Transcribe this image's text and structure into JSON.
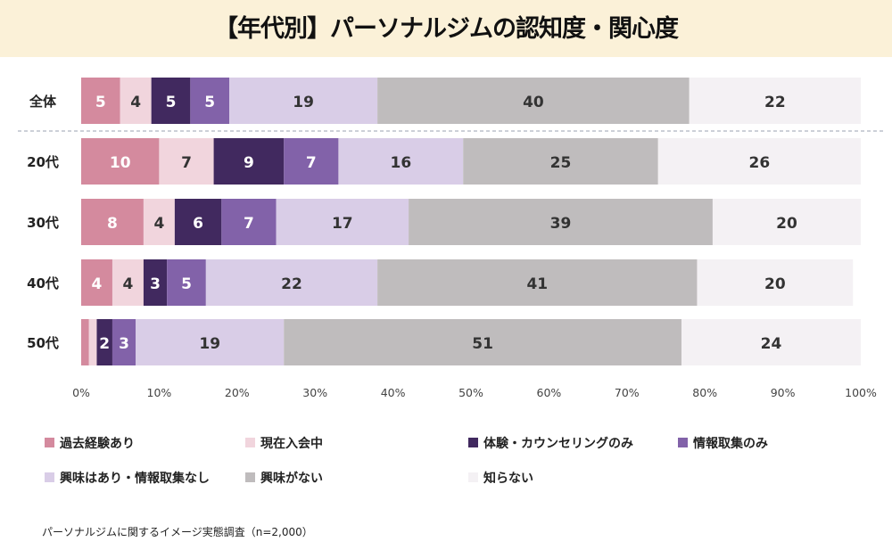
{
  "title": "【年代別】パーソナルジムの認知度・関心度",
  "footnote": "パーソナルジムに関するイメージ実態調査（n=2,000）",
  "chart_data": {
    "type": "bar",
    "orientation": "horizontal-stacked",
    "title": "【年代別】パーソナルジムの認知度・関心度",
    "categories": [
      "全体",
      "20代",
      "30代",
      "40代",
      "50代"
    ],
    "xlim": [
      0,
      100
    ],
    "xticks": [
      "0%",
      "10%",
      "20%",
      "30%",
      "40%",
      "50%",
      "60%",
      "70%",
      "80%",
      "90%",
      "100%"
    ],
    "legend_position": "bottom",
    "series": [
      {
        "name": "過去経験あり",
        "color": "#d48a9e",
        "label_color": "#ffffff",
        "values": [
          5,
          10,
          8,
          4,
          1
        ],
        "labels": [
          "5",
          "10",
          "8",
          "4",
          ""
        ]
      },
      {
        "name": "現在入会中",
        "color": "#f1d5dd",
        "label_color": "#333333",
        "values": [
          4,
          7,
          4,
          4,
          1
        ],
        "labels": [
          "4",
          "7",
          "4",
          "4",
          ""
        ]
      },
      {
        "name": "体験・カウンセリングのみ",
        "color": "#41295f",
        "label_color": "#ffffff",
        "values": [
          5,
          9,
          6,
          3,
          2
        ],
        "labels": [
          "5",
          "9",
          "6",
          "3",
          "2"
        ]
      },
      {
        "name": "情報取集のみ",
        "color": "#8262a9",
        "label_color": "#ffffff",
        "values": [
          5,
          7,
          7,
          5,
          3
        ],
        "labels": [
          "5",
          "7",
          "7",
          "5",
          "3"
        ]
      },
      {
        "name": "興味はあり・情報取集なし",
        "color": "#d9cde7",
        "label_color": "#333333",
        "values": [
          19,
          16,
          17,
          22,
          19
        ],
        "labels": [
          "19",
          "16",
          "17",
          "22",
          "19"
        ]
      },
      {
        "name": "興味がない",
        "color": "#bfbcbd",
        "label_color": "#333333",
        "values": [
          40,
          25,
          39,
          41,
          51
        ],
        "labels": [
          "40",
          "25",
          "39",
          "41",
          "51"
        ]
      },
      {
        "name": "知らない",
        "color": "#f4f1f4",
        "label_color": "#333333",
        "values": [
          22,
          26,
          20,
          20,
          24
        ],
        "labels": [
          "22",
          "26",
          "20",
          "20",
          "24"
        ]
      }
    ]
  }
}
